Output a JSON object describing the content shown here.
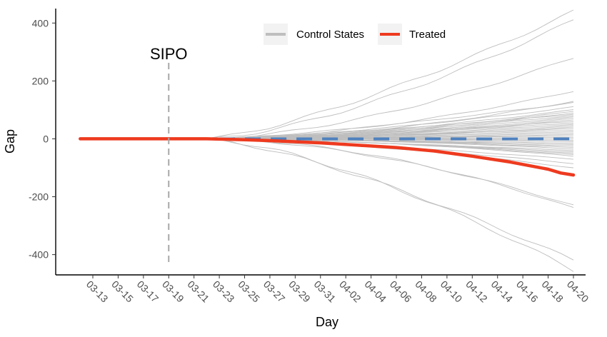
{
  "chart_data": {
    "type": "line",
    "title": "",
    "xlabel": "Day",
    "ylabel": "Gap",
    "x_ticks": [
      "03-13",
      "03-15",
      "03-17",
      "03-19",
      "03-21",
      "03-23",
      "03-25",
      "03-27",
      "03-29",
      "03-31",
      "04-02",
      "04-04",
      "04-06",
      "04-08",
      "04-10",
      "04-12",
      "04-14",
      "04-16",
      "04-18",
      "04-20"
    ],
    "ylim": [
      -470,
      450
    ],
    "y_ticks": [
      -400,
      -200,
      0,
      200,
      400
    ],
    "legend_position": "top",
    "legend": [
      {
        "label": "Control States",
        "color": "#bebebe"
      },
      {
        "label": "Treated",
        "color": "#ee3a1f"
      }
    ],
    "annotation": {
      "label": "SIPO",
      "x": "03-19"
    },
    "series_control_end_values": [
      440,
      410,
      280,
      165,
      130,
      125,
      110,
      100,
      95,
      90,
      85,
      80,
      75,
      70,
      65,
      60,
      55,
      50,
      45,
      40,
      35,
      30,
      25,
      20,
      15,
      10,
      5,
      0,
      -5,
      -10,
      -15,
      -20,
      -25,
      -30,
      -35,
      -40,
      -45,
      -50,
      -55,
      -60,
      -70,
      -85,
      -100,
      -230,
      -240,
      -420,
      -455
    ],
    "treated": {
      "name": "Treated",
      "x": [
        "03-12",
        "03-19",
        "03-22",
        "03-25",
        "03-28",
        "03-31",
        "04-03",
        "04-06",
        "04-09",
        "04-12",
        "04-15",
        "04-18",
        "04-19",
        "04-20"
      ],
      "values": [
        0,
        0,
        0,
        -3,
        -8,
        -14,
        -22,
        -30,
        -42,
        -60,
        -80,
        -105,
        -118,
        -125
      ]
    },
    "control_mean": {
      "x": [
        "03-23",
        "04-20"
      ],
      "values": [
        0,
        0
      ],
      "color": "#4f81bd",
      "style": "dashed"
    }
  }
}
